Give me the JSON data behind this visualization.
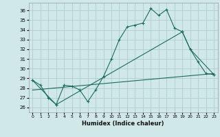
{
  "title": "",
  "xlabel": "Humidex (Indice chaleur)",
  "ylabel": "",
  "xlim": [
    -0.5,
    23.5
  ],
  "ylim": [
    25.5,
    36.8
  ],
  "yticks": [
    26,
    27,
    28,
    29,
    30,
    31,
    32,
    33,
    34,
    35,
    36
  ],
  "xticks": [
    0,
    1,
    2,
    3,
    4,
    5,
    6,
    7,
    8,
    9,
    10,
    11,
    12,
    13,
    14,
    15,
    16,
    17,
    18,
    19,
    20,
    21,
    22,
    23
  ],
  "bg_color": "#d1e8e8",
  "grid_color": "#b0cccc",
  "line_color": "#1a6b5a",
  "line1": {
    "x": [
      0,
      1,
      2,
      3,
      4,
      5,
      6,
      7,
      8,
      9,
      10,
      11,
      12,
      13,
      14,
      15,
      16,
      17,
      18,
      19,
      20,
      21,
      22,
      23
    ],
    "y": [
      28.8,
      28.3,
      27.0,
      26.3,
      28.3,
      28.2,
      27.8,
      26.6,
      27.8,
      29.2,
      31.0,
      33.0,
      34.3,
      34.5,
      34.7,
      36.2,
      35.5,
      36.1,
      34.2,
      33.8,
      32.0,
      30.7,
      29.5,
      29.4
    ]
  },
  "line2": {
    "x": [
      0,
      3,
      19,
      20,
      23
    ],
    "y": [
      28.8,
      26.3,
      33.8,
      32.0,
      29.4
    ]
  },
  "line3": {
    "x": [
      0,
      23
    ],
    "y": [
      27.8,
      29.5
    ]
  }
}
